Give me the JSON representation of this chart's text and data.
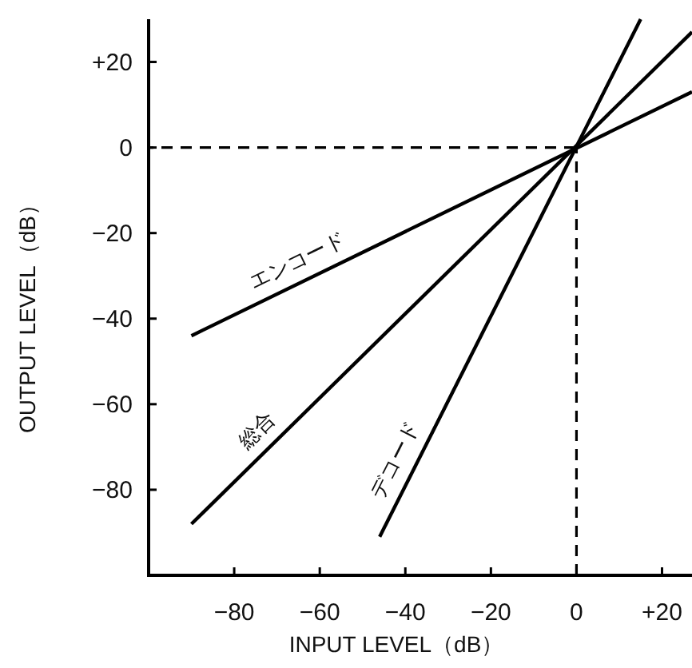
{
  "chart_data": {
    "type": "line",
    "xlabel": "INPUT LEVEL（dB）",
    "ylabel": "OUTPUT LEVEL（dB）",
    "xlim": [
      -100,
      27
    ],
    "ylim": [
      -100,
      30
    ],
    "xticks": [
      {
        "value": -80,
        "label": "−80"
      },
      {
        "value": -60,
        "label": "−60"
      },
      {
        "value": -40,
        "label": "−40"
      },
      {
        "value": -20,
        "label": "−20"
      },
      0,
      {
        "value": 20,
        "label": "+20"
      }
    ],
    "yticks": [
      {
        "value": 20,
        "label": "+20"
      },
      0,
      {
        "value": -20,
        "label": "−20"
      },
      {
        "value": -40,
        "label": "−40"
      },
      {
        "value": -60,
        "label": "−60"
      },
      {
        "value": -80,
        "label": "−80"
      }
    ],
    "series": [
      {
        "name": "エンコード",
        "color": "#000000",
        "x": [
          -90,
          27
        ],
        "values": [
          -44,
          13
        ]
      },
      {
        "name": "総合",
        "color": "#000000",
        "x": [
          -90,
          27
        ],
        "values": [
          -88,
          27
        ]
      },
      {
        "name": "デコード",
        "color": "#000000",
        "x": [
          -46,
          15
        ],
        "values": [
          -91,
          30
        ]
      }
    ],
    "ref_lines": [
      {
        "axis": "x",
        "value": 0,
        "line_style": "dashed"
      },
      {
        "axis": "y",
        "value": 0,
        "line_style": "dashed"
      }
    ],
    "grid": false,
    "line_style": "solid",
    "marker": "none"
  }
}
